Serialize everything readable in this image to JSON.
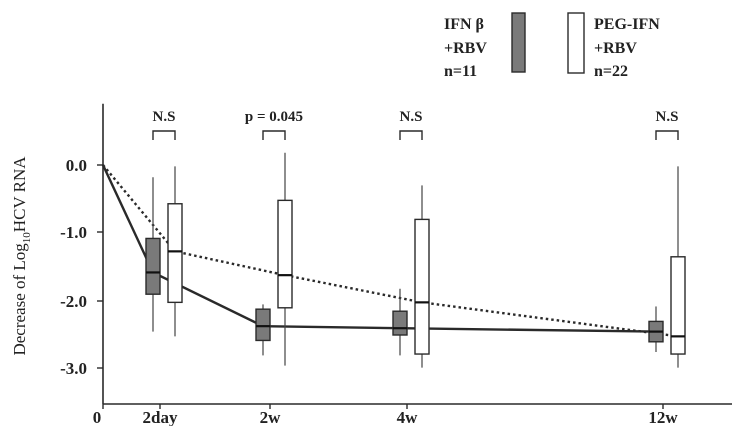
{
  "chart_data": {
    "type": "box",
    "ylabel_parts": {
      "before": "Decrease of Log",
      "sub": "10",
      "after": "HCV RNA"
    },
    "x_categories": [
      "0",
      "2day",
      "2w",
      "4w",
      "12w"
    ],
    "y_ticks": [
      "0.0",
      "-1.0",
      "-2.0",
      "-3.0"
    ],
    "ylim": [
      -3.35,
      0.9
    ],
    "grid": false,
    "legend_position": "top-right",
    "legend": [
      {
        "line1": "IFN β",
        "line2": "+RBV",
        "line3": "n=11",
        "fill": "#7a7a7a"
      },
      {
        "line1": "PEG-IFN",
        "line2": "+RBV",
        "line3": "n=22",
        "fill": "#ffffff"
      }
    ],
    "significance": [
      {
        "category": "2day",
        "label": "N.S"
      },
      {
        "category": "2w",
        "label": "p = 0.045"
      },
      {
        "category": "4w",
        "label": "N.S"
      },
      {
        "category": "12w",
        "label": "N.S"
      }
    ],
    "series": [
      {
        "name": "IFN β +RBV",
        "fill": "#7a7a7a",
        "line_style": "solid",
        "mean_line": [
          0.0,
          -1.58,
          -2.37,
          -2.4,
          -2.45
        ],
        "boxes": [
          {
            "category": "2day",
            "whisker_low": -2.45,
            "q1": -1.9,
            "median": -1.58,
            "q3": -1.08,
            "whisker_high": -0.18
          },
          {
            "category": "2w",
            "whisker_low": -2.8,
            "q1": -2.58,
            "median": -2.37,
            "q3": -2.12,
            "whisker_high": -2.05
          },
          {
            "category": "4w",
            "whisker_low": -2.8,
            "q1": -2.5,
            "median": -2.4,
            "q3": -2.15,
            "whisker_high": -1.82
          },
          {
            "category": "12w",
            "whisker_low": -2.75,
            "q1": -2.6,
            "median": -2.45,
            "q3": -2.3,
            "whisker_high": -2.08
          }
        ]
      },
      {
        "name": "PEG-IFN +RBV",
        "fill": "#ffffff",
        "line_style": "dotted",
        "mean_line": [
          0.0,
          -1.27,
          -1.62,
          -2.02,
          -2.52
        ],
        "boxes": [
          {
            "category": "2day",
            "whisker_low": -2.52,
            "q1": -2.02,
            "median": -1.27,
            "q3": -0.57,
            "whisker_high": -0.02
          },
          {
            "category": "2w",
            "whisker_low": -2.95,
            "q1": -2.1,
            "median": -1.62,
            "q3": -0.52,
            "whisker_high": 0.18
          },
          {
            "category": "4w",
            "whisker_low": -2.98,
            "q1": -2.78,
            "median": -2.02,
            "q3": -0.8,
            "whisker_high": -0.3
          },
          {
            "category": "12w",
            "whisker_low": -2.98,
            "q1": -2.78,
            "median": -2.52,
            "q3": -1.35,
            "whisker_high": -0.02
          }
        ]
      }
    ]
  }
}
